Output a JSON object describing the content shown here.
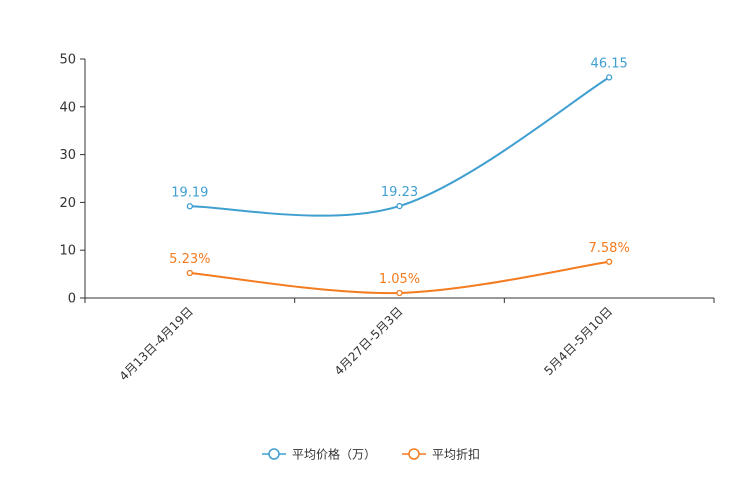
{
  "chart_data": {
    "type": "line",
    "smooth": true,
    "categories": [
      "4月13日-4月19日",
      "4月27日-5月3日",
      "5月4日-5月10日"
    ],
    "ylim": [
      0,
      50
    ],
    "yticks": [
      0,
      10,
      20,
      30,
      40,
      50
    ],
    "grid": false,
    "legend_position": "bottom-center",
    "series": [
      {
        "name": "平均价格（万）",
        "color": "#3f9fd0",
        "values": [
          19.19,
          19.23,
          46.15
        ],
        "labels": [
          "19.19",
          "19.23",
          "46.15"
        ]
      },
      {
        "name": "平均折扣",
        "color": "#f47c20",
        "values": [
          5.23,
          1.05,
          7.58
        ],
        "labels": [
          "5.23%",
          "1.05%",
          "7.58%"
        ]
      }
    ]
  }
}
